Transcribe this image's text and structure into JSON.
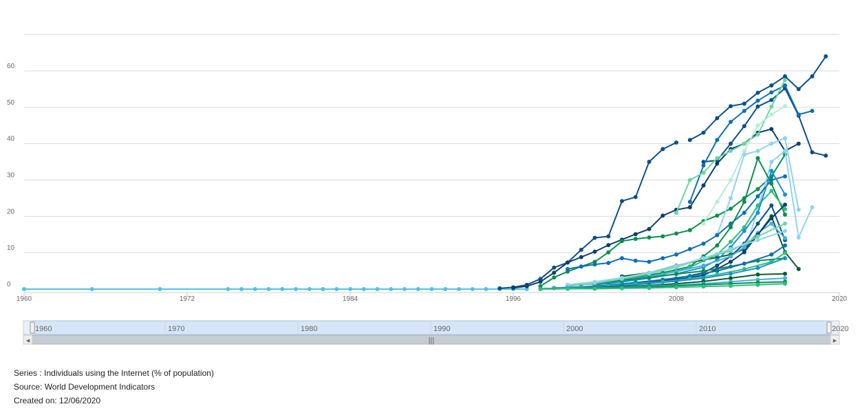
{
  "footer": {
    "series": "Series : Individuals using the Internet (% of population)",
    "source": "Source: World Development Indicators",
    "created": "Created on: 12/06/2020"
  },
  "navigator": {
    "year_labels": [
      "1960",
      "1970",
      "1980",
      "1990",
      "2000",
      "2010",
      "2020"
    ],
    "handle_glyph": "|||",
    "left_arrow": "◂",
    "right_arrow": "▸"
  },
  "chart_data": {
    "type": "line",
    "title": "",
    "xlabel": "",
    "ylabel": "",
    "xlim": [
      1960,
      2020
    ],
    "ylim": [
      0,
      70
    ],
    "x_ticks": [
      1960,
      1972,
      1984,
      1996,
      2008,
      2020
    ],
    "y_ticks": [
      0,
      10,
      20,
      30,
      40,
      50,
      60
    ],
    "grid": true,
    "legend": "none",
    "palette": [
      "#0b4f8a",
      "#0d6fb8",
      "#1b8fd6",
      "#46b0e6",
      "#8fd3f0",
      "#2dbf7f",
      "#0a8f4d",
      "#0b5d31",
      "#6bd6a0",
      "#b6ecd4",
      "#0b3f6e"
    ],
    "series": [
      {
        "color": "#4fc3e8",
        "x": [
          1960,
          1965,
          1970,
          1975,
          1976,
          1977,
          1978,
          1979,
          1980,
          1981,
          1982,
          1983,
          1984,
          1985,
          1986,
          1987,
          1988,
          1989,
          1990,
          1991,
          1992,
          1993,
          1994,
          1995,
          1996,
          1997
        ],
        "y": [
          0,
          0,
          0,
          0,
          0,
          0,
          0,
          0,
          0,
          0,
          0,
          0,
          0,
          0,
          0,
          0,
          0,
          0,
          0,
          0,
          0,
          0,
          0,
          0,
          0,
          0
        ]
      },
      {
        "color": "#0b4f8a",
        "x": [
          1995,
          1996,
          1997,
          1998,
          1999,
          2000,
          2001,
          2002,
          2003,
          2004,
          2005,
          2006,
          2007,
          2008
        ],
        "y": [
          0.2,
          0.5,
          1.2,
          2.8,
          5.9,
          7.3,
          10.8,
          14.1,
          14.5,
          24.2,
          25.3,
          35.0,
          38.5,
          40.3
        ]
      },
      {
        "color": "#0b4f8a",
        "x": [
          2009,
          2010,
          2011,
          2012,
          2013,
          2014,
          2015,
          2016,
          2017,
          2018,
          2019
        ],
        "y": [
          41,
          43,
          47,
          50.3,
          51,
          54,
          56,
          58.5,
          55,
          58.5,
          64
        ]
      },
      {
        "color": "#0b4f8a",
        "x": [
          2010,
          2011,
          2012,
          2013,
          2014,
          2015,
          2016,
          2017,
          2018,
          2019
        ],
        "y": [
          35,
          35.4,
          40,
          44.8,
          50.2,
          52,
          55.2,
          47.7,
          37.6,
          36.7
        ]
      },
      {
        "color": "#0d6fb8",
        "x": [
          2009,
          2010,
          2011,
          2012,
          2013,
          2014,
          2015,
          2016,
          2017,
          2018
        ],
        "y": [
          24,
          34,
          41,
          46,
          49,
          51.8,
          54.1,
          56,
          48,
          49
        ]
      },
      {
        "color": "#0b3f6e",
        "x": [
          1996,
          1997,
          1998,
          1999,
          2000,
          2001,
          2002,
          2003,
          2004,
          2005,
          2006,
          2007,
          2008,
          2009,
          2010,
          2011,
          2012,
          2013,
          2014,
          2015,
          2016,
          2017
        ],
        "y": [
          0.3,
          0.8,
          2.0,
          4.5,
          7.3,
          8.8,
          10.3,
          12.1,
          13.6,
          15.1,
          16.5,
          20.2,
          21.8,
          22.5,
          28.5,
          34.5,
          38.5,
          40.0,
          43.0,
          44.0,
          38.0,
          40.0
        ]
      },
      {
        "color": "#0a8f4d",
        "x": [
          1998,
          1999,
          2000,
          2001,
          2002,
          2003,
          2004,
          2005,
          2006,
          2007,
          2008,
          2009,
          2010,
          2011,
          2012,
          2013,
          2014,
          2015,
          2016
        ],
        "y": [
          0.8,
          3.2,
          4.8,
          6.2,
          7.5,
          10.1,
          13.2,
          13.8,
          14.2,
          14.5,
          15.3,
          16.2,
          18.7,
          20.2,
          22.1,
          25.0,
          27.5,
          31.0,
          37.0
        ]
      },
      {
        "color": "#6bd6a0",
        "x": [
          2008,
          2009,
          2010,
          2011,
          2012,
          2013,
          2014,
          2015,
          2016
        ],
        "y": [
          21,
          30,
          32,
          36,
          38,
          40,
          42.5,
          50.2,
          57.5
        ]
      },
      {
        "color": "#b6ecd4",
        "x": [
          2010,
          2011,
          2012,
          2013,
          2014,
          2015,
          2016
        ],
        "y": [
          18,
          24,
          30,
          38,
          45,
          48,
          50.3
        ]
      },
      {
        "color": "#8fd3f0",
        "x": [
          2011,
          2012,
          2013,
          2014,
          2015,
          2016,
          2017
        ],
        "y": [
          15,
          25,
          37,
          38,
          40,
          41.5,
          21.8
        ]
      },
      {
        "color": "#8fd3f0",
        "x": [
          2013,
          2014,
          2015,
          2016,
          2017,
          2018
        ],
        "y": [
          10,
          22,
          35,
          38,
          14.2,
          22.5
        ]
      },
      {
        "color": "#0d6fb8",
        "x": [
          2000,
          2001,
          2002,
          2003,
          2004,
          2005,
          2006,
          2007,
          2008,
          2009,
          2010,
          2011,
          2012,
          2013,
          2014,
          2015,
          2016
        ],
        "y": [
          5.5,
          6.2,
          6.8,
          7.2,
          8.5,
          7.8,
          7.5,
          8.5,
          9.5,
          11.0,
          12.5,
          14.8,
          18.0,
          21.0,
          25.5,
          30.0,
          31.0
        ]
      },
      {
        "color": "#0b5d31",
        "x": [
          2004,
          2006,
          2008,
          2010,
          2011,
          2012,
          2013,
          2014,
          2015,
          2016,
          2017
        ],
        "y": [
          3.5,
          4.5,
          6.5,
          8.0,
          8.7,
          9.5,
          11.0,
          15.0,
          20.0,
          10.2,
          5.5
        ]
      },
      {
        "color": "#0a8f4d",
        "x": [
          2003,
          2005,
          2007,
          2009,
          2010,
          2011,
          2012,
          2013,
          2014,
          2015,
          2016
        ],
        "y": [
          2.0,
          3.2,
          4.5,
          6.2,
          9.0,
          12.0,
          17.0,
          24.0,
          36.0,
          29.0,
          20.5
        ]
      },
      {
        "color": "#2dbf7f",
        "x": [
          2003,
          2005,
          2007,
          2009,
          2011,
          2012,
          2013,
          2014,
          2015,
          2016
        ],
        "y": [
          1.5,
          2.5,
          4.0,
          6.0,
          9.5,
          13.0,
          17.0,
          23.0,
          27.0,
          22.0
        ]
      },
      {
        "color": "#1b8fd6",
        "x": [
          2002,
          2004,
          2006,
          2008,
          2010,
          2011,
          2012,
          2013,
          2014,
          2015,
          2016
        ],
        "y": [
          1.2,
          2.0,
          3.0,
          4.2,
          6.0,
          8.0,
          11.5,
          16.0,
          21.0,
          32.5,
          26.0
        ]
      },
      {
        "color": "#0b4f8a",
        "x": [
          2004,
          2006,
          2008,
          2010,
          2011,
          2012,
          2013,
          2014,
          2015,
          2016
        ],
        "y": [
          1.0,
          1.8,
          2.9,
          4.5,
          6.5,
          9.0,
          12.5,
          18.0,
          23.0,
          13.5
        ]
      },
      {
        "color": "#46b0e6",
        "x": [
          2002,
          2004,
          2006,
          2008,
          2010,
          2012,
          2013,
          2014,
          2015,
          2016
        ],
        "y": [
          1.5,
          2.4,
          3.5,
          4.8,
          6.5,
          9.0,
          11.5,
          15.5,
          18.0,
          14.0
        ]
      },
      {
        "color": "#0b3f6e",
        "x": [
          2002,
          2004,
          2006,
          2008,
          2010,
          2011,
          2012,
          2013,
          2014,
          2015,
          2016
        ],
        "y": [
          0.5,
          1.0,
          1.8,
          2.6,
          3.8,
          5.5,
          7.5,
          10.2,
          15.0,
          19.5,
          23.2
        ]
      },
      {
        "color": "#0a8f4d",
        "x": [
          2000,
          2002,
          2004,
          2006,
          2008,
          2010,
          2012,
          2014,
          2016
        ],
        "y": [
          1.0,
          1.5,
          2.4,
          3.2,
          4.1,
          5.0,
          6.2,
          7.8,
          8.5
        ]
      },
      {
        "color": "#6bd6a0",
        "x": [
          2000,
          2002,
          2004,
          2006,
          2008,
          2010,
          2012,
          2014,
          2016
        ],
        "y": [
          0.8,
          1.6,
          2.8,
          4.2,
          6.0,
          8.5,
          10.5,
          14.5,
          18.0
        ]
      },
      {
        "color": "#8fd3f0",
        "x": [
          2000,
          2002,
          2004,
          2006,
          2008,
          2010,
          2012,
          2014,
          2016
        ],
        "y": [
          1.2,
          2.0,
          3.1,
          4.5,
          6.4,
          8.5,
          11.0,
          13.5,
          16.0
        ]
      },
      {
        "color": "#0d6fb8",
        "x": [
          1999,
          2001,
          2003,
          2005,
          2007,
          2009,
          2011,
          2013,
          2015,
          2016
        ],
        "y": [
          0.3,
          0.6,
          1.1,
          1.8,
          2.6,
          3.6,
          5.0,
          7.0,
          9.5,
          12.0
        ]
      },
      {
        "color": "#2dbf7f",
        "x": [
          1999,
          2001,
          2003,
          2005,
          2007,
          2009,
          2011,
          2013,
          2015,
          2016
        ],
        "y": [
          0.2,
          0.5,
          0.9,
          1.4,
          2.0,
          2.9,
          4.0,
          5.5,
          7.5,
          10.0
        ]
      },
      {
        "color": "#1b8fd6",
        "x": [
          1998,
          2000,
          2002,
          2004,
          2006,
          2008,
          2010,
          2012,
          2014,
          2016
        ],
        "y": [
          0.1,
          0.3,
          0.6,
          1.0,
          1.5,
          2.2,
          3.0,
          4.2,
          5.8,
          8.5
        ]
      },
      {
        "color": "#0b5d31",
        "x": [
          1998,
          2000,
          2002,
          2004,
          2006,
          2008,
          2010,
          2012,
          2014,
          2016
        ],
        "y": [
          0.1,
          0.2,
          0.4,
          0.7,
          1.0,
          1.5,
          2.1,
          3.0,
          4.0,
          4.2
        ]
      },
      {
        "color": "#46b0e6",
        "x": [
          1998,
          2000,
          2002,
          2004,
          2006,
          2008,
          2010,
          2012,
          2014,
          2016
        ],
        "y": [
          0.1,
          0.2,
          0.3,
          0.5,
          0.8,
          1.1,
          1.5,
          2.0,
          2.6,
          3.0
        ]
      },
      {
        "color": "#0a8f4d",
        "x": [
          1998,
          2000,
          2002,
          2004,
          2006,
          2008,
          2010,
          2012,
          2014,
          2016
        ],
        "y": [
          0.1,
          0.1,
          0.2,
          0.4,
          0.6,
          0.9,
          1.2,
          1.5,
          1.8,
          2.0
        ]
      },
      {
        "color": "#2dbf7f",
        "x": [
          1998,
          2000,
          2002,
          2004,
          2006,
          2008,
          2010,
          2012,
          2014,
          2016
        ],
        "y": [
          0.0,
          0.1,
          0.1,
          0.2,
          0.3,
          0.5,
          0.7,
          0.9,
          1.2,
          1.5
        ]
      }
    ]
  }
}
